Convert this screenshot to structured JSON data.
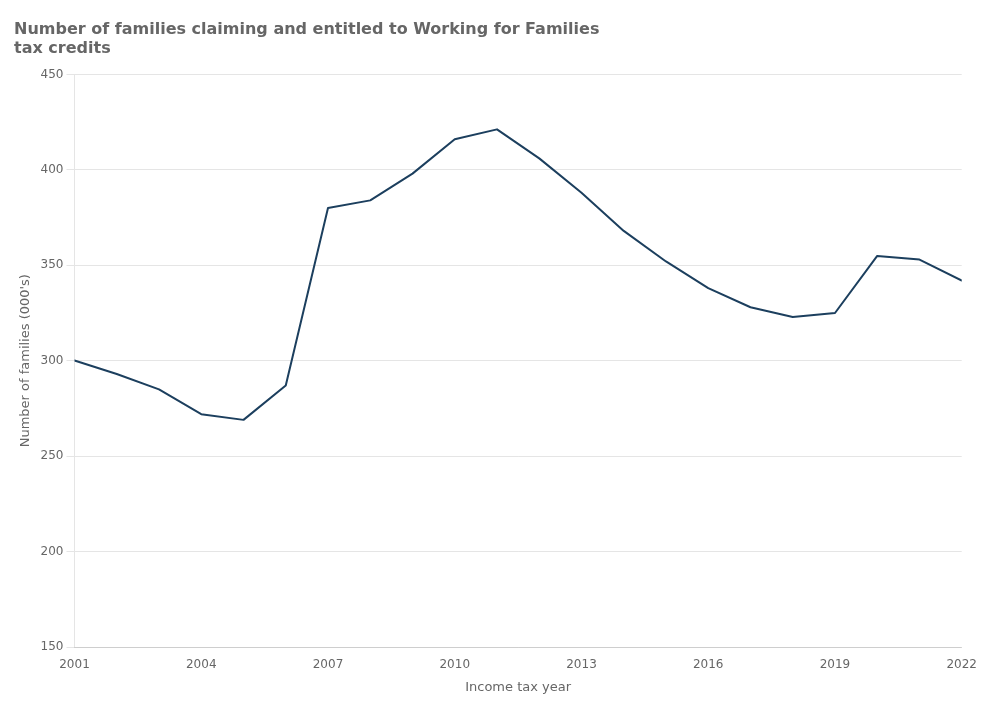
{
  "chart_data": {
    "type": "line",
    "title": "Number of families claiming and entitled to Working for Families\ntax credits",
    "xlabel": "Income tax year",
    "ylabel": "Number of families (000's)",
    "x": [
      2001,
      2002,
      2003,
      2004,
      2005,
      2006,
      2007,
      2008,
      2009,
      2010,
      2011,
      2012,
      2013,
      2014,
      2015,
      2016,
      2017,
      2018,
      2019,
      2020,
      2021,
      2022
    ],
    "values": [
      300.1,
      293.0,
      285.0,
      272.0,
      269.0,
      287.0,
      380.0,
      384.0,
      398.0,
      416.0,
      421.2,
      406.0,
      388.0,
      368.0,
      352.0,
      338.0,
      328.0,
      322.9,
      325.0,
      354.9,
      353.0,
      342.0
    ],
    "color": "#1c3f5e",
    "xlim": [
      2001,
      2022
    ],
    "ylim": [
      150,
      450
    ],
    "xticks": [
      2001,
      2004,
      2007,
      2010,
      2013,
      2016,
      2019,
      2022
    ],
    "yticks": [
      150,
      200,
      250,
      300,
      350,
      400,
      450
    ],
    "grid": "y"
  }
}
